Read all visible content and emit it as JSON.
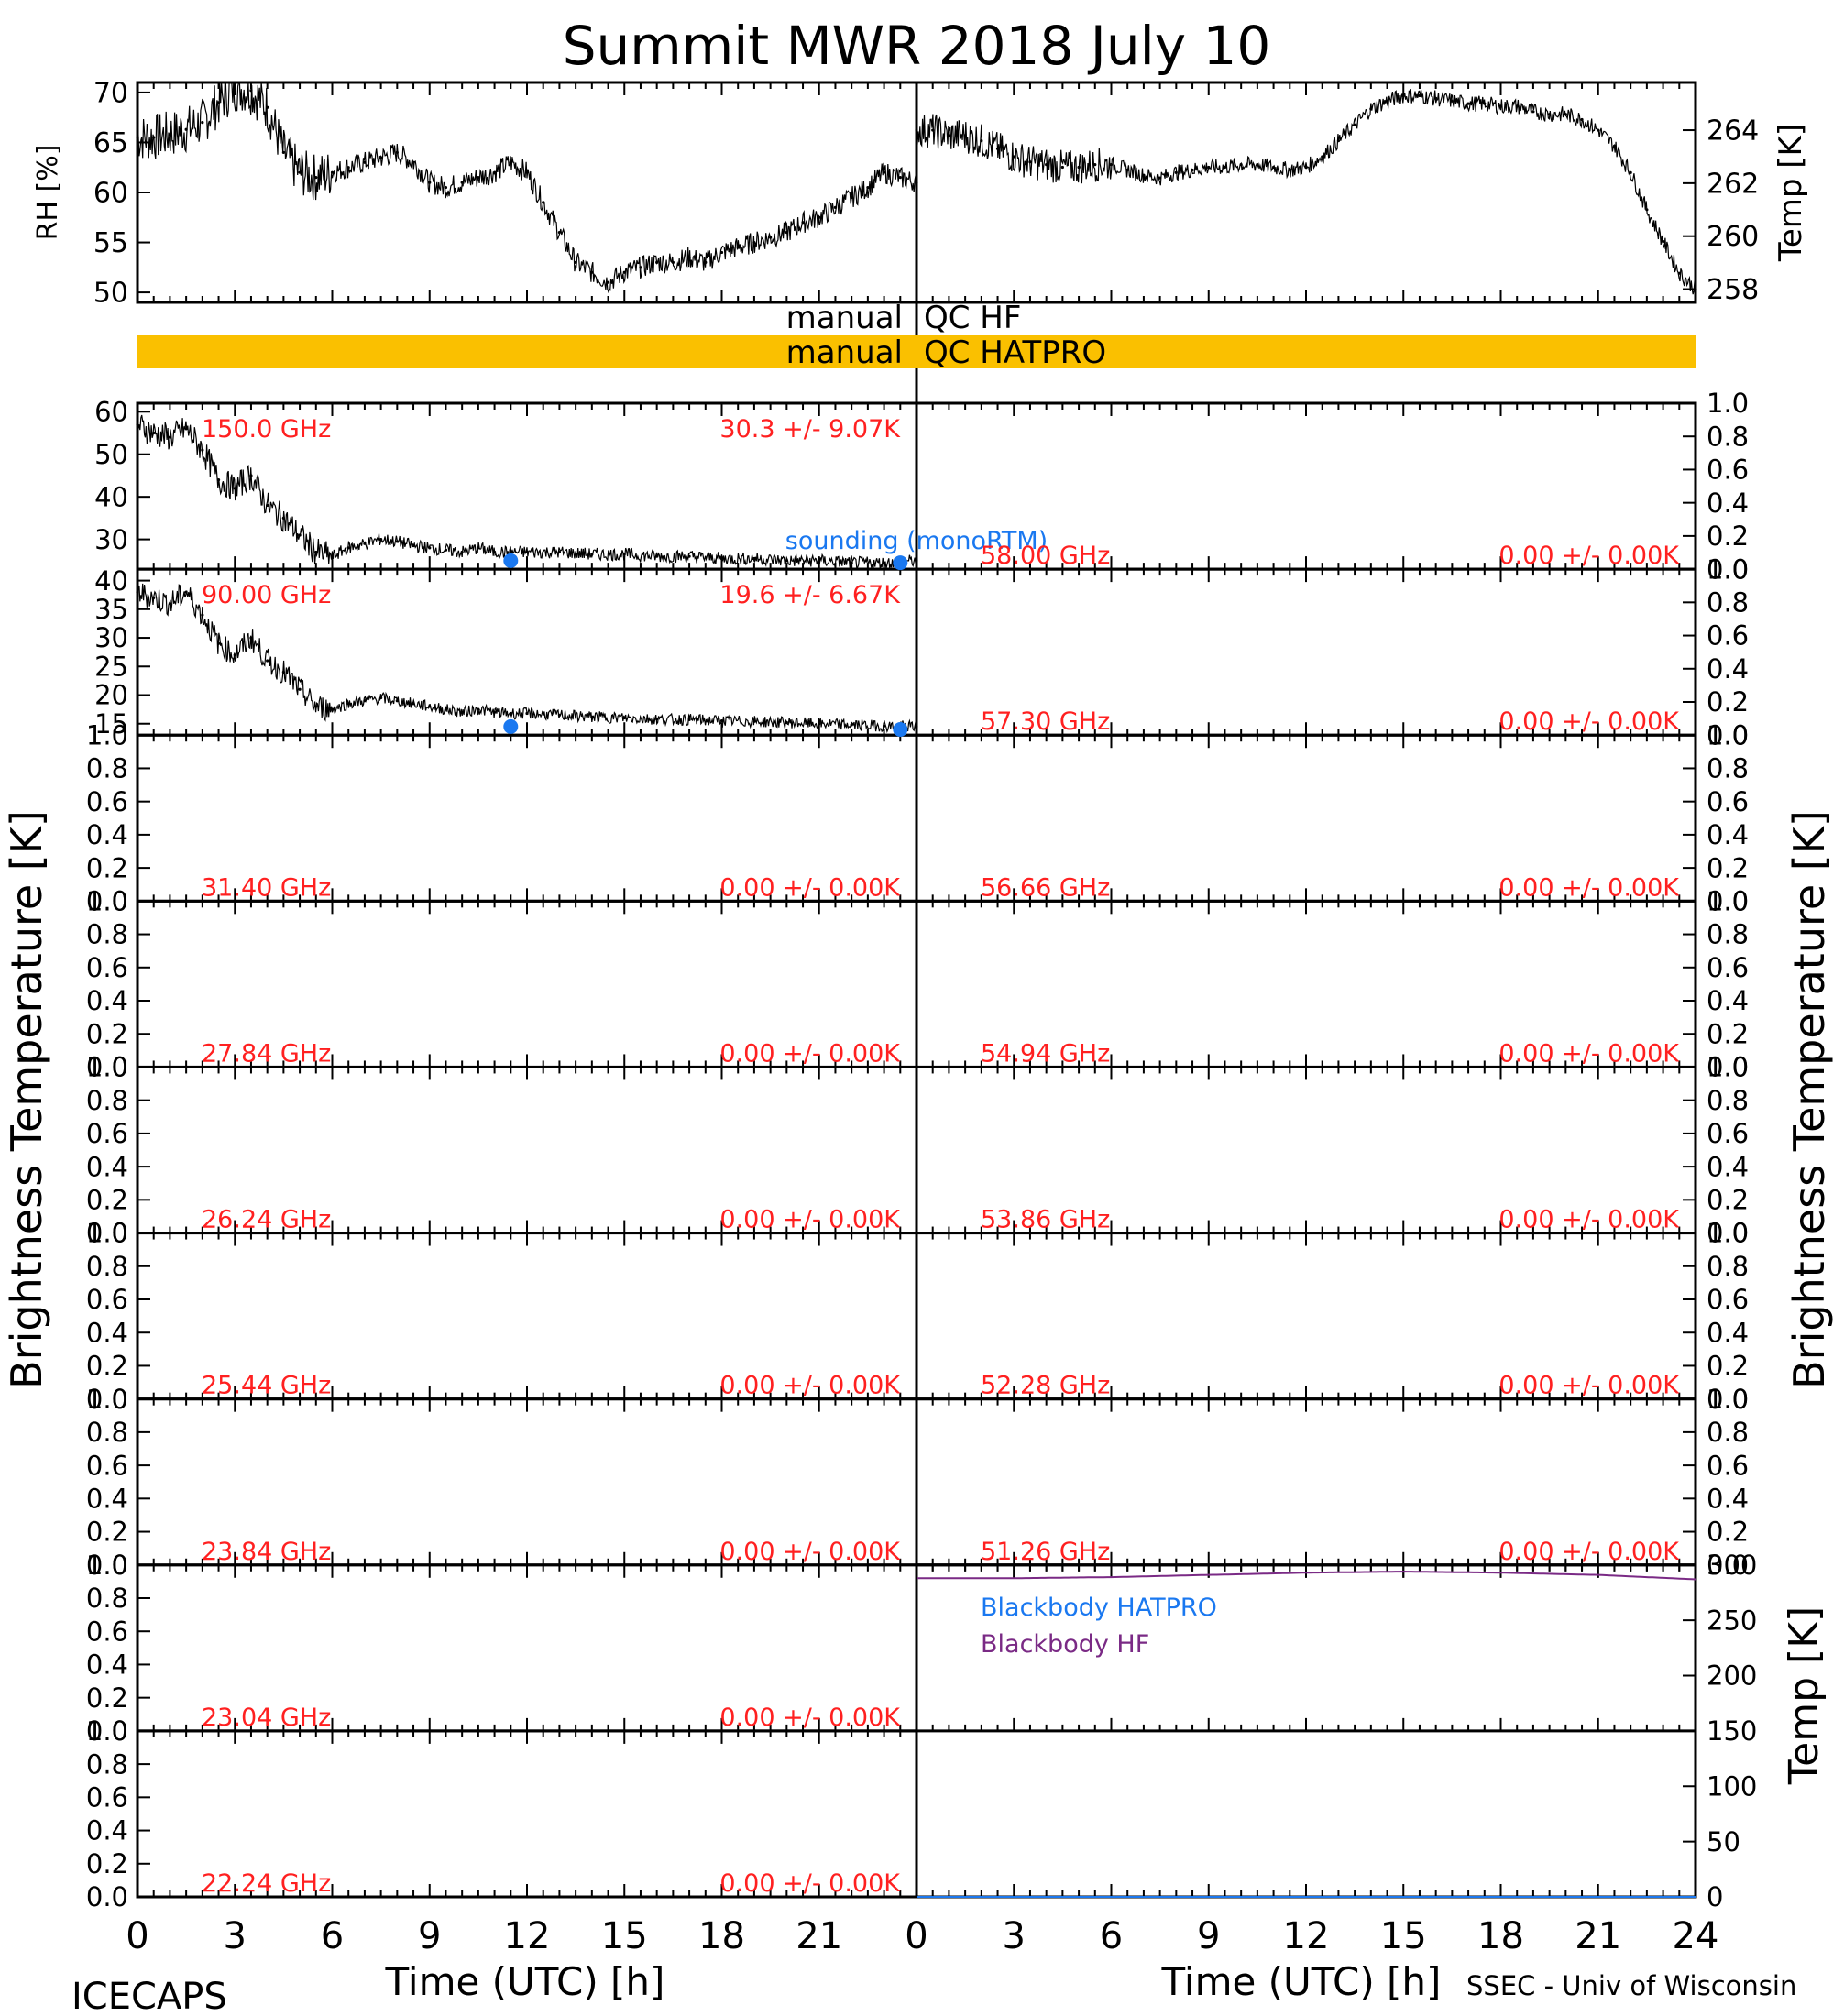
{
  "title": "Summit MWR 2018 July 10",
  "footer": {
    "left": "ICECAPS",
    "right": "SSEC - Univ of Wisconsin"
  },
  "axis_labels": {
    "rh": "RH [%]",
    "temp_top": "Temp [K]",
    "tb_left": "Brightness Temperature [K]",
    "tb_right": "Brightness Temperature [K]",
    "temp_bottom": "Temp [K]",
    "xlabel": "Time (UTC) [h]"
  },
  "qc": {
    "hf_left": "manual",
    "hf_right": "QC HF",
    "hatpro_left": "manual",
    "hatpro_right": "QC HATPRO",
    "hatpro_color": "#fac000"
  },
  "colors": {
    "data": "#000000",
    "label": "#ff2020",
    "sounding": "#1a78f0",
    "bb_hatpro": "#1a78f0",
    "bb_hf": "#7a2a85"
  },
  "chart_data": [
    {
      "type": "scatter",
      "panel": "rh",
      "ylabel": "RH [%]",
      "xlim": [
        0,
        24
      ],
      "ylim": [
        49,
        71
      ],
      "yticks": [
        "50",
        "55",
        "60",
        "65",
        "70"
      ],
      "xticks": [
        "0",
        "3",
        "6",
        "9",
        "12",
        "15",
        "18",
        "21"
      ],
      "x": [
        0,
        0.5,
        1,
        1.5,
        2,
        2.5,
        3,
        3.5,
        4,
        4.5,
        5,
        5.5,
        6,
        6.5,
        7,
        7.5,
        8,
        8.5,
        9,
        9.5,
        10,
        10.5,
        11,
        11.5,
        12,
        12.5,
        13,
        13.5,
        14,
        14.5,
        15,
        15.5,
        16,
        16.5,
        17,
        17.5,
        18,
        18.5,
        19,
        19.5,
        20,
        20.5,
        21,
        21.5,
        22,
        22.5,
        23,
        23.5,
        24
      ],
      "values": [
        65.5,
        65.5,
        65.8,
        66.3,
        67,
        69,
        70.5,
        70.2,
        68.5,
        64,
        62,
        61.5,
        62,
        62.5,
        63,
        63.5,
        64,
        63,
        61,
        60.5,
        61,
        61.5,
        62,
        63,
        62,
        59,
        56,
        53,
        52,
        51,
        52,
        52.5,
        53,
        53,
        53.5,
        53,
        54,
        54.5,
        55,
        55.5,
        56,
        57,
        57.5,
        58.5,
        59.5,
        60.5,
        62,
        61.5,
        61
      ]
    },
    {
      "type": "scatter",
      "panel": "temp",
      "ylabel": "Temp [K]",
      "xlim": [
        0,
        24
      ],
      "ylim": [
        257.5,
        265.8
      ],
      "yticks": [
        "258",
        "260",
        "262",
        "264"
      ],
      "x": [
        0,
        0.5,
        1,
        1.5,
        2,
        2.5,
        3,
        3.5,
        4,
        4.5,
        5,
        5.5,
        6,
        6.5,
        7,
        7.5,
        8,
        8.5,
        9,
        9.5,
        10,
        10.5,
        11,
        11.5,
        12,
        12.5,
        13,
        13.5,
        14,
        14.5,
        15,
        15.5,
        16,
        16.5,
        17,
        17.5,
        18,
        18.5,
        19,
        19.5,
        20,
        20.5,
        21,
        21.5,
        22,
        22.5,
        23,
        23.5,
        24
      ],
      "values": [
        264,
        264,
        263.8,
        263.8,
        263.6,
        263.3,
        263,
        262.8,
        262.7,
        262.6,
        262.6,
        262.7,
        262.7,
        262.5,
        262.3,
        262.2,
        262.4,
        262.5,
        262.6,
        262.6,
        262.7,
        262.7,
        262.6,
        262.5,
        262.6,
        263,
        263.6,
        264.2,
        264.8,
        265.1,
        265.3,
        265.3,
        265.2,
        265.1,
        265,
        265,
        264.9,
        264.9,
        264.7,
        264.6,
        264.6,
        264.4,
        264,
        263.4,
        262.4,
        261,
        259.8,
        258.6,
        258
      ]
    },
    {
      "type": "line",
      "panel": "150",
      "channel": "150.0 GHz",
      "stats": "30.3 +/- 9.07K",
      "xlim": [
        0,
        24
      ],
      "ylim": [
        23,
        62
      ],
      "yticks": [
        "30",
        "40",
        "50",
        "60"
      ],
      "x": [
        0,
        0.5,
        1,
        1.5,
        2,
        2.5,
        3,
        3.5,
        4,
        4.5,
        5,
        5.5,
        6,
        6.5,
        7,
        7.5,
        8,
        8.5,
        9,
        9.5,
        10,
        10.5,
        11,
        11.5,
        12,
        13,
        14,
        15,
        16,
        17,
        18,
        19,
        20,
        21,
        22,
        23,
        24
      ],
      "values": [
        57,
        55,
        54,
        56,
        51,
        44,
        42,
        45,
        38,
        35,
        31,
        27,
        26,
        28,
        29,
        30,
        29.5,
        28.5,
        28,
        27.5,
        27,
        28,
        27,
        27,
        27,
        27,
        26.5,
        26.5,
        26,
        26,
        25.5,
        25.5,
        25,
        25,
        24.5,
        24.5,
        25
      ],
      "sounding": {
        "label": "sounding (monoRTM)",
        "x": [
          11.5,
          23.5
        ],
        "values": [
          25,
          24.5
        ]
      }
    },
    {
      "type": "line",
      "panel": "90",
      "channel": "90.00 GHz",
      "stats": "19.6 +/- 6.67K",
      "xlim": [
        0,
        24
      ],
      "ylim": [
        13,
        42
      ],
      "yticks": [
        "15",
        "20",
        "25",
        "30",
        "35",
        "40"
      ],
      "x": [
        0,
        0.5,
        1,
        1.5,
        2,
        2.5,
        3,
        3.5,
        4,
        4.5,
        5,
        5.5,
        6,
        6.5,
        7,
        7.5,
        8,
        8.5,
        9,
        9.5,
        10,
        10.5,
        11,
        11.5,
        12,
        13,
        14,
        15,
        16,
        17,
        18,
        19,
        20,
        21,
        22,
        23,
        24
      ],
      "values": [
        38,
        37,
        36,
        38,
        34,
        29,
        27,
        30,
        26,
        24,
        21,
        18,
        17.5,
        18.5,
        19,
        19.5,
        19,
        18.5,
        18,
        17.5,
        17,
        17.5,
        17,
        16.8,
        16.8,
        16.5,
        16.2,
        16,
        15.8,
        15.7,
        15.5,
        15.4,
        15.2,
        15,
        14.8,
        14.6,
        14.5
      ],
      "sounding": {
        "x": [
          11.5,
          23.5
        ],
        "values": [
          14.5,
          14
        ]
      }
    },
    {
      "type": "line",
      "panel": "bb",
      "xlim": [
        0,
        24
      ],
      "ylim": [
        0,
        300
      ],
      "yticks": [
        "0",
        "50",
        "100",
        "150",
        "200",
        "250",
        "300"
      ],
      "series": [
        {
          "name": "Blackbody HATPRO",
          "x": [
            0,
            24
          ],
          "values": [
            0,
            0
          ]
        },
        {
          "name": "Blackbody HF",
          "x": [
            0,
            3,
            6,
            9,
            12,
            15,
            18,
            21,
            24
          ],
          "values": [
            288,
            288,
            289,
            291,
            293,
            294,
            293,
            291,
            287
          ]
        }
      ]
    }
  ],
  "empty_panels": {
    "left": [
      {
        "channel": "31.40 GHz",
        "stats": "0.00 +/- 0.00K"
      },
      {
        "channel": "27.84 GHz",
        "stats": "0.00 +/- 0.00K"
      },
      {
        "channel": "26.24 GHz",
        "stats": "0.00 +/- 0.00K"
      },
      {
        "channel": "25.44 GHz",
        "stats": "0.00 +/- 0.00K"
      },
      {
        "channel": "23.84 GHz",
        "stats": "0.00 +/- 0.00K"
      },
      {
        "channel": "23.04 GHz",
        "stats": "0.00 +/- 0.00K"
      },
      {
        "channel": "22.24 GHz",
        "stats": "0.00 +/- 0.00K"
      }
    ],
    "right": [
      {
        "channel": "58.00 GHz",
        "stats": "0.00 +/- 0.00K"
      },
      {
        "channel": "57.30 GHz",
        "stats": "0.00 +/- 0.00K"
      },
      {
        "channel": "56.66 GHz",
        "stats": "0.00 +/- 0.00K"
      },
      {
        "channel": "54.94 GHz",
        "stats": "0.00 +/- 0.00K"
      },
      {
        "channel": "53.86 GHz",
        "stats": "0.00 +/- 0.00K"
      },
      {
        "channel": "52.28 GHz",
        "stats": "0.00 +/- 0.00K"
      },
      {
        "channel": "51.26 GHz",
        "stats": "0.00 +/- 0.00K"
      }
    ],
    "yticks": [
      "0.0",
      "0.2",
      "0.4",
      "0.6",
      "0.8",
      "1.0"
    ]
  },
  "xticks_bottom": [
    "0",
    "3",
    "6",
    "9",
    "12",
    "15",
    "18",
    "21",
    "24"
  ]
}
